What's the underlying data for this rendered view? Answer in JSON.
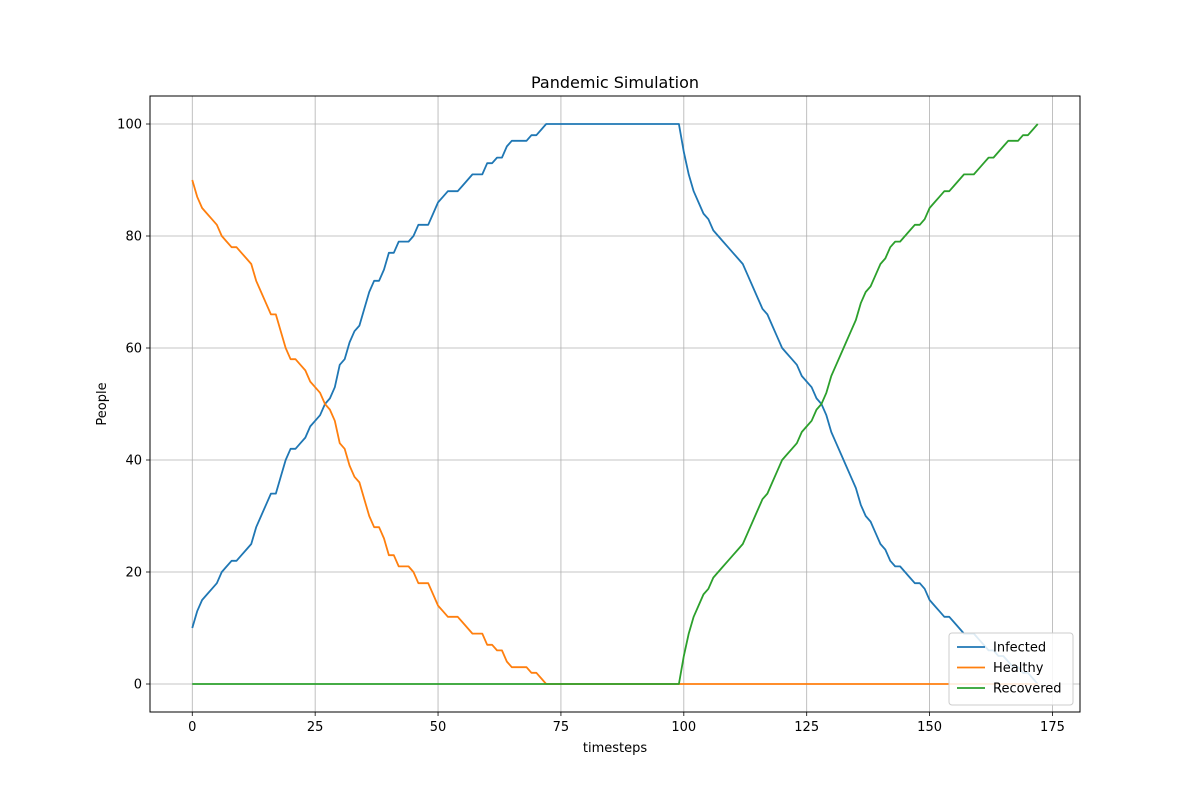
{
  "chart_data": {
    "type": "line",
    "title": "Pandemic Simulation",
    "xlabel": "timesteps",
    "ylabel": "People",
    "xlim": [
      -8.6,
      180.6
    ],
    "ylim": [
      -5,
      105
    ],
    "xticks": [
      0,
      25,
      50,
      75,
      100,
      125,
      150,
      175
    ],
    "yticks": [
      0,
      20,
      40,
      60,
      80,
      100
    ],
    "grid": true,
    "legend_position": "lower-right",
    "series": [
      {
        "name": "Infected",
        "color": "#1f77b4",
        "points": [
          [
            0,
            10
          ],
          [
            1,
            13
          ],
          [
            2,
            15
          ],
          [
            3,
            16
          ],
          [
            4,
            17
          ],
          [
            5,
            18
          ],
          [
            6,
            20
          ],
          [
            7,
            21
          ],
          [
            8,
            22
          ],
          [
            9,
            22
          ],
          [
            10,
            23
          ],
          [
            11,
            24
          ],
          [
            12,
            25
          ],
          [
            13,
            28
          ],
          [
            14,
            30
          ],
          [
            15,
            32
          ],
          [
            16,
            34
          ],
          [
            17,
            34
          ],
          [
            18,
            37
          ],
          [
            19,
            40
          ],
          [
            20,
            42
          ],
          [
            21,
            42
          ],
          [
            22,
            43
          ],
          [
            23,
            44
          ],
          [
            24,
            46
          ],
          [
            25,
            47
          ],
          [
            26,
            48
          ],
          [
            27,
            50
          ],
          [
            28,
            51
          ],
          [
            29,
            53
          ],
          [
            30,
            57
          ],
          [
            31,
            58
          ],
          [
            32,
            61
          ],
          [
            33,
            63
          ],
          [
            34,
            64
          ],
          [
            35,
            67
          ],
          [
            36,
            70
          ],
          [
            37,
            72
          ],
          [
            38,
            72
          ],
          [
            39,
            74
          ],
          [
            40,
            77
          ],
          [
            41,
            77
          ],
          [
            42,
            79
          ],
          [
            43,
            79
          ],
          [
            44,
            79
          ],
          [
            45,
            80
          ],
          [
            46,
            82
          ],
          [
            47,
            82
          ],
          [
            48,
            82
          ],
          [
            49,
            84
          ],
          [
            50,
            86
          ],
          [
            51,
            87
          ],
          [
            52,
            88
          ],
          [
            53,
            88
          ],
          [
            54,
            88
          ],
          [
            55,
            89
          ],
          [
            56,
            90
          ],
          [
            57,
            91
          ],
          [
            58,
            91
          ],
          [
            59,
            91
          ],
          [
            60,
            93
          ],
          [
            61,
            93
          ],
          [
            62,
            94
          ],
          [
            63,
            94
          ],
          [
            64,
            96
          ],
          [
            65,
            97
          ],
          [
            66,
            97
          ],
          [
            67,
            97
          ],
          [
            68,
            97
          ],
          [
            69,
            98
          ],
          [
            70,
            98
          ],
          [
            71,
            99
          ],
          [
            72,
            100
          ],
          [
            99,
            100
          ],
          [
            100,
            95
          ],
          [
            101,
            91
          ],
          [
            102,
            88
          ],
          [
            103,
            86
          ],
          [
            104,
            84
          ],
          [
            105,
            83
          ],
          [
            106,
            81
          ],
          [
            107,
            80
          ],
          [
            108,
            79
          ],
          [
            109,
            78
          ],
          [
            110,
            77
          ],
          [
            111,
            76
          ],
          [
            112,
            75
          ],
          [
            113,
            73
          ],
          [
            114,
            71
          ],
          [
            115,
            69
          ],
          [
            116,
            67
          ],
          [
            117,
            66
          ],
          [
            118,
            64
          ],
          [
            119,
            62
          ],
          [
            120,
            60
          ],
          [
            121,
            59
          ],
          [
            122,
            58
          ],
          [
            123,
            57
          ],
          [
            124,
            55
          ],
          [
            125,
            54
          ],
          [
            126,
            53
          ],
          [
            127,
            51
          ],
          [
            128,
            50
          ],
          [
            129,
            48
          ],
          [
            130,
            45
          ],
          [
            131,
            43
          ],
          [
            132,
            41
          ],
          [
            133,
            39
          ],
          [
            134,
            37
          ],
          [
            135,
            35
          ],
          [
            136,
            32
          ],
          [
            137,
            30
          ],
          [
            138,
            29
          ],
          [
            139,
            27
          ],
          [
            140,
            25
          ],
          [
            141,
            24
          ],
          [
            142,
            22
          ],
          [
            143,
            21
          ],
          [
            144,
            21
          ],
          [
            145,
            20
          ],
          [
            146,
            19
          ],
          [
            147,
            18
          ],
          [
            148,
            18
          ],
          [
            149,
            17
          ],
          [
            150,
            15
          ],
          [
            151,
            14
          ],
          [
            152,
            13
          ],
          [
            153,
            12
          ],
          [
            154,
            12
          ],
          [
            155,
            11
          ],
          [
            156,
            10
          ],
          [
            157,
            9
          ],
          [
            158,
            9
          ],
          [
            159,
            9
          ],
          [
            160,
            8
          ],
          [
            161,
            7
          ],
          [
            162,
            6
          ],
          [
            163,
            6
          ],
          [
            164,
            5
          ],
          [
            165,
            5
          ],
          [
            166,
            4
          ],
          [
            167,
            3
          ],
          [
            168,
            3
          ],
          [
            169,
            2
          ],
          [
            170,
            2
          ],
          [
            171,
            1
          ],
          [
            172,
            0
          ]
        ]
      },
      {
        "name": "Healthy",
        "color": "#ff7f0e",
        "points": [
          [
            0,
            90
          ],
          [
            1,
            87
          ],
          [
            2,
            85
          ],
          [
            3,
            84
          ],
          [
            4,
            83
          ],
          [
            5,
            82
          ],
          [
            6,
            80
          ],
          [
            7,
            79
          ],
          [
            8,
            78
          ],
          [
            9,
            78
          ],
          [
            10,
            77
          ],
          [
            11,
            76
          ],
          [
            12,
            75
          ],
          [
            13,
            72
          ],
          [
            14,
            70
          ],
          [
            15,
            68
          ],
          [
            16,
            66
          ],
          [
            17,
            66
          ],
          [
            18,
            63
          ],
          [
            19,
            60
          ],
          [
            20,
            58
          ],
          [
            21,
            58
          ],
          [
            22,
            57
          ],
          [
            23,
            56
          ],
          [
            24,
            54
          ],
          [
            25,
            53
          ],
          [
            26,
            52
          ],
          [
            27,
            50
          ],
          [
            28,
            49
          ],
          [
            29,
            47
          ],
          [
            30,
            43
          ],
          [
            31,
            42
          ],
          [
            32,
            39
          ],
          [
            33,
            37
          ],
          [
            34,
            36
          ],
          [
            35,
            33
          ],
          [
            36,
            30
          ],
          [
            37,
            28
          ],
          [
            38,
            28
          ],
          [
            39,
            26
          ],
          [
            40,
            23
          ],
          [
            41,
            23
          ],
          [
            42,
            21
          ],
          [
            43,
            21
          ],
          [
            44,
            21
          ],
          [
            45,
            20
          ],
          [
            46,
            18
          ],
          [
            47,
            18
          ],
          [
            48,
            18
          ],
          [
            49,
            16
          ],
          [
            50,
            14
          ],
          [
            51,
            13
          ],
          [
            52,
            12
          ],
          [
            53,
            12
          ],
          [
            54,
            12
          ],
          [
            55,
            11
          ],
          [
            56,
            10
          ],
          [
            57,
            9
          ],
          [
            58,
            9
          ],
          [
            59,
            9
          ],
          [
            60,
            7
          ],
          [
            61,
            7
          ],
          [
            62,
            6
          ],
          [
            63,
            6
          ],
          [
            64,
            4
          ],
          [
            65,
            3
          ],
          [
            66,
            3
          ],
          [
            67,
            3
          ],
          [
            68,
            3
          ],
          [
            69,
            2
          ],
          [
            70,
            2
          ],
          [
            71,
            1
          ],
          [
            72,
            0
          ],
          [
            172,
            0
          ]
        ]
      },
      {
        "name": "Recovered",
        "color": "#2ca02c",
        "points": [
          [
            0,
            0
          ],
          [
            99,
            0
          ],
          [
            100,
            5
          ],
          [
            101,
            9
          ],
          [
            102,
            12
          ],
          [
            103,
            14
          ],
          [
            104,
            16
          ],
          [
            105,
            17
          ],
          [
            106,
            19
          ],
          [
            107,
            20
          ],
          [
            108,
            21
          ],
          [
            109,
            22
          ],
          [
            110,
            23
          ],
          [
            111,
            24
          ],
          [
            112,
            25
          ],
          [
            113,
            27
          ],
          [
            114,
            29
          ],
          [
            115,
            31
          ],
          [
            116,
            33
          ],
          [
            117,
            34
          ],
          [
            118,
            36
          ],
          [
            119,
            38
          ],
          [
            120,
            40
          ],
          [
            121,
            41
          ],
          [
            122,
            42
          ],
          [
            123,
            43
          ],
          [
            124,
            45
          ],
          [
            125,
            46
          ],
          [
            126,
            47
          ],
          [
            127,
            49
          ],
          [
            128,
            50
          ],
          [
            129,
            52
          ],
          [
            130,
            55
          ],
          [
            131,
            57
          ],
          [
            132,
            59
          ],
          [
            133,
            61
          ],
          [
            134,
            63
          ],
          [
            135,
            65
          ],
          [
            136,
            68
          ],
          [
            137,
            70
          ],
          [
            138,
            71
          ],
          [
            139,
            73
          ],
          [
            140,
            75
          ],
          [
            141,
            76
          ],
          [
            142,
            78
          ],
          [
            143,
            79
          ],
          [
            144,
            79
          ],
          [
            145,
            80
          ],
          [
            146,
            81
          ],
          [
            147,
            82
          ],
          [
            148,
            82
          ],
          [
            149,
            83
          ],
          [
            150,
            85
          ],
          [
            151,
            86
          ],
          [
            152,
            87
          ],
          [
            153,
            88
          ],
          [
            154,
            88
          ],
          [
            155,
            89
          ],
          [
            156,
            90
          ],
          [
            157,
            91
          ],
          [
            158,
            91
          ],
          [
            159,
            91
          ],
          [
            160,
            92
          ],
          [
            161,
            93
          ],
          [
            162,
            94
          ],
          [
            163,
            94
          ],
          [
            164,
            95
          ],
          [
            165,
            96
          ],
          [
            166,
            97
          ],
          [
            167,
            97
          ],
          [
            168,
            97
          ],
          [
            169,
            98
          ],
          [
            170,
            98
          ],
          [
            171,
            99
          ],
          [
            172,
            100
          ]
        ]
      }
    ]
  }
}
